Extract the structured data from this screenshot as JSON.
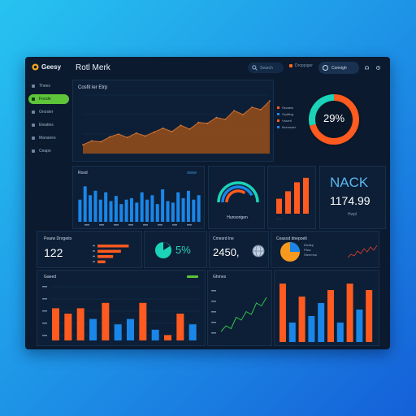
{
  "app": {
    "logo_text": "Geesy",
    "title": "Rotl Merk"
  },
  "header": {
    "search_text": "Search",
    "filter_text": "Droppiger",
    "profile_text": "Connigh"
  },
  "sidebar": {
    "items": [
      {
        "label": "Thees",
        "icon": "home-icon",
        "active": false
      },
      {
        "label": "Focsle",
        "icon": "chart-icon",
        "active": true
      },
      {
        "label": "Gnosier",
        "icon": "folder-icon",
        "active": false
      },
      {
        "label": "Eleaties",
        "icon": "layers-icon",
        "active": false
      },
      {
        "label": "Mananes",
        "icon": "settings-icon",
        "active": false
      },
      {
        "label": "Ceape",
        "icon": "doc-icon",
        "active": false
      }
    ]
  },
  "panels": {
    "area_title": "Cosfit ler Etrp",
    "legend": [
      "Ssvaeis",
      "Grpiting",
      "Vsiceit",
      "Monmaet"
    ],
    "donut_value": "29%",
    "bars_title": "Rosd",
    "gauge_label": "Hunsorigen",
    "nack_title": "NACK",
    "nack_value": "1174.99",
    "nack_sub": "Hwpl",
    "kpi1_label": "Pearw Dnrgeito",
    "kpi1_value": "122",
    "kpi2_value": "5%",
    "kpi3_label": "Cmesrd Ine",
    "kpi3_value": "2450,",
    "pie_label": "Ceasod dnepoelt",
    "pie_legend": [
      "Eleltsp",
      "Pisw",
      "Stenrmoi"
    ],
    "bottom_left_title": "Gaeed",
    "bottom_mid_title": "Ghmes"
  },
  "colors": {
    "orange": "#ff5a1f",
    "blue": "#1a86e8",
    "teal": "#1ad3b8",
    "area": "#8a4a1e",
    "green": "#5ec43a"
  },
  "chart_data": [
    {
      "type": "area",
      "title": "Cosfit ler Etrp",
      "values": [
        18,
        26,
        24,
        34,
        40,
        33,
        42,
        36,
        44,
        52,
        45,
        58,
        50,
        64,
        62,
        74,
        70,
        88,
        80,
        95,
        90,
        108
      ],
      "ylim": [
        0,
        120
      ]
    },
    {
      "type": "pie",
      "values": [
        71,
        29
      ],
      "center_label": "29%"
    },
    {
      "type": "bar",
      "title": "Rosd",
      "values": [
        30,
        48,
        36,
        42,
        30,
        40,
        28,
        35,
        24,
        30,
        32,
        26,
        40,
        30,
        36,
        24,
        44,
        28,
        26,
        40,
        32,
        42,
        30,
        36
      ],
      "ylim": [
        0,
        55
      ]
    },
    {
      "type": "bar",
      "values": [
        20,
        30,
        42,
        48
      ],
      "ylim": [
        0,
        50
      ]
    },
    {
      "type": "bar",
      "values": [
        8,
        6,
        4,
        2
      ],
      "ylim": [
        0,
        10
      ]
    },
    {
      "type": "line",
      "values": [
        4,
        10,
        5,
        12,
        8,
        14,
        9,
        16,
        11,
        18,
        14,
        20
      ],
      "ylim": [
        0,
        22
      ]
    },
    {
      "type": "bar",
      "title": "Gaeed",
      "series": [
        {
          "values": [
            6,
            5,
            6,
            0,
            7,
            0,
            0,
            7,
            0,
            1,
            5,
            0
          ]
        },
        {
          "values": [
            0,
            0,
            0,
            4,
            0,
            3,
            4,
            0,
            2,
            0,
            0,
            3
          ]
        }
      ],
      "ylim": [
        0,
        10
      ]
    },
    {
      "type": "line",
      "title": "Ghmes",
      "values": [
        2,
        4,
        3,
        7,
        6,
        9,
        8,
        12,
        11,
        14
      ],
      "ylim": [
        0,
        16
      ]
    },
    {
      "type": "bar",
      "series": [
        {
          "values": [
            9,
            0,
            7,
            0,
            0,
            8,
            0,
            9,
            0,
            8
          ]
        },
        {
          "values": [
            0,
            3,
            0,
            4,
            6,
            0,
            3,
            0,
            5,
            0
          ]
        }
      ],
      "ylim": [
        0,
        10
      ]
    }
  ]
}
